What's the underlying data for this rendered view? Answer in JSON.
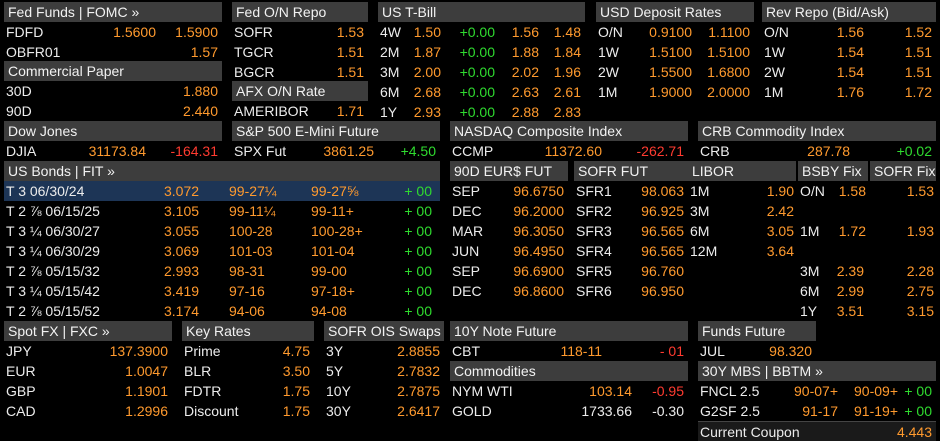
{
  "fed_funds": {
    "title": "Fed Funds | FOMC »",
    "rows": [
      {
        "label": "FDFD",
        "v1": "1.5600",
        "v2": "1.5900"
      },
      {
        "label": "OBFR01",
        "v1": "",
        "v2": "1.57"
      }
    ]
  },
  "commercial_paper": {
    "title": "Commercial Paper",
    "rows": [
      {
        "label": "30D",
        "value": "1.880"
      },
      {
        "label": "90D",
        "value": "2.440"
      }
    ]
  },
  "fed_on_repo": {
    "title": "Fed O/N Repo",
    "rows": [
      {
        "label": "SOFR",
        "value": "1.53"
      },
      {
        "label": "TGCR",
        "value": "1.51"
      },
      {
        "label": "BGCR",
        "value": "1.51"
      }
    ]
  },
  "afx": {
    "title": "AFX O/N Rate",
    "rows": [
      {
        "label": "AMERIBOR",
        "value": "1.71"
      }
    ]
  },
  "tbill": {
    "title": "US T-Bill",
    "rows": [
      {
        "tenor": "4W",
        "yld": "1.50",
        "chg": "+0.00",
        "bid": "1.56",
        "ask": "1.48"
      },
      {
        "tenor": "2M",
        "yld": "1.87",
        "chg": "+0.00",
        "bid": "1.88",
        "ask": "1.84"
      },
      {
        "tenor": "3M",
        "yld": "2.00",
        "chg": "+0.00",
        "bid": "2.02",
        "ask": "1.96"
      },
      {
        "tenor": "6M",
        "yld": "2.68",
        "chg": "+0.00",
        "bid": "2.63",
        "ask": "2.61"
      },
      {
        "tenor": "1Y",
        "yld": "2.93",
        "chg": "+0.00",
        "bid": "2.88",
        "ask": "2.83"
      }
    ]
  },
  "usd_deposit": {
    "title": "USD Deposit Rates",
    "rows": [
      {
        "tenor": "O/N",
        "v1": "0.9100",
        "v2": "1.1100"
      },
      {
        "tenor": "1W",
        "v1": "1.5100",
        "v2": "1.5100"
      },
      {
        "tenor": "2W",
        "v1": "1.5500",
        "v2": "1.6800"
      },
      {
        "tenor": "1M",
        "v1": "1.9000",
        "v2": "2.0000"
      }
    ]
  },
  "rev_repo": {
    "title": "Rev Repo (Bid/Ask)",
    "rows": [
      {
        "tenor": "O/N",
        "v1": "1.56",
        "v2": "1.52"
      },
      {
        "tenor": "1W",
        "v1": "1.54",
        "v2": "1.51"
      },
      {
        "tenor": "2W",
        "v1": "1.54",
        "v2": "1.51"
      },
      {
        "tenor": "1M",
        "v1": "1.76",
        "v2": "1.72"
      }
    ]
  },
  "dow": {
    "title": "Dow Jones",
    "label": "DJIA",
    "value": "31173.84",
    "change": "-164.31"
  },
  "spx": {
    "title": "S&P 500 E-Mini Future",
    "label": "SPX Fut",
    "value": "3861.25",
    "change": "+4.50"
  },
  "nasdaq": {
    "title": "NASDAQ Composite Index",
    "label": "CCMP",
    "value": "11372.60",
    "change": "-262.71"
  },
  "crb": {
    "title": "CRB Commodity Index",
    "label": "CRB",
    "value": "287.78",
    "change": "+0.02"
  },
  "us_bonds": {
    "title": "US Bonds | FIT »",
    "rows": [
      {
        "name": "T 3 06/30/24",
        "yld": "3.072",
        "bid": "99-27¼",
        "ask": "99-27⅝",
        "chg": "+ 00"
      },
      {
        "name": "T 2 ⅞ 06/15/25",
        "yld": "3.105",
        "bid": "99-11¼",
        "ask": "99-11+",
        "chg": "+ 00"
      },
      {
        "name": "T 3 ¼ 06/30/27",
        "yld": "3.055",
        "bid": "100-28",
        "ask": "100-28+",
        "chg": "+ 00"
      },
      {
        "name": "T 3 ¼ 06/30/29",
        "yld": "3.069",
        "bid": "101-03",
        "ask": "101-04",
        "chg": "+ 00"
      },
      {
        "name": "T 2 ⅞ 05/15/32",
        "yld": "2.993",
        "bid": "98-31",
        "ask": "99-00",
        "chg": "+ 00"
      },
      {
        "name": "T 3 ¼ 05/15/42",
        "yld": "3.419",
        "bid": "97-16",
        "ask": "97-18+",
        "chg": "+ 00"
      },
      {
        "name": "T 2 ⅞ 05/15/52",
        "yld": "3.174",
        "bid": "94-06",
        "ask": "94-08",
        "chg": "+ 00"
      }
    ]
  },
  "eur_fut": {
    "title": "90D EUR$ FUT",
    "rows": [
      {
        "label": "SEP",
        "value": "96.6750"
      },
      {
        "label": "DEC",
        "value": "96.2000"
      },
      {
        "label": "MAR",
        "value": "96.3050"
      },
      {
        "label": "JUN",
        "value": "96.4950"
      },
      {
        "label": "SEP",
        "value": "96.6900"
      },
      {
        "label": "DEC",
        "value": "96.8600"
      }
    ]
  },
  "sofr_fut": {
    "title": "SOFR FUT",
    "rows": [
      {
        "label": "SFR1",
        "value": "98.063"
      },
      {
        "label": "SFR2",
        "value": "96.925"
      },
      {
        "label": "SFR3",
        "value": "96.565"
      },
      {
        "label": "SFR4",
        "value": "96.565"
      },
      {
        "label": "SFR5",
        "value": "96.760"
      },
      {
        "label": "SFR6",
        "value": "96.950"
      }
    ]
  },
  "libor": {
    "title": "LIBOR",
    "rows": [
      {
        "label": "1M",
        "value": "1.90"
      },
      {
        "label": "3M",
        "value": "2.42"
      },
      {
        "label": "6M",
        "value": "3.05"
      },
      {
        "label": "12M",
        "value": "3.64"
      }
    ]
  },
  "bsby": {
    "title": "BSBY Fix",
    "rows": [
      {
        "label": "O/N",
        "value": "1.58"
      },
      {
        "label": "1M",
        "value": "1.72"
      }
    ]
  },
  "sofr_fix": {
    "title": "SOFR Fix",
    "rows": [
      {
        "value": "1.53"
      },
      {
        "value": "1.93"
      }
    ]
  },
  "bsby_terms": {
    "rows": [
      {
        "label": "3M",
        "v1": "2.39",
        "v2": "2.28"
      },
      {
        "label": "6M",
        "v1": "2.99",
        "v2": "2.75"
      },
      {
        "label": "1Y",
        "v1": "3.51",
        "v2": "3.15"
      }
    ]
  },
  "spot_fx": {
    "title": "Spot FX | FXC »",
    "rows": [
      {
        "label": "JPY",
        "value": "137.3900"
      },
      {
        "label": "EUR",
        "value": "1.0047"
      },
      {
        "label": "GBP",
        "value": "1.1901"
      },
      {
        "label": "CAD",
        "value": "1.2996"
      }
    ]
  },
  "key_rates": {
    "title": "Key Rates",
    "rows": [
      {
        "label": "Prime",
        "value": "4.75"
      },
      {
        "label": "BLR",
        "value": "3.50"
      },
      {
        "label": "FDTR",
        "value": "1.75"
      },
      {
        "label": "Discount",
        "value": "1.75"
      }
    ]
  },
  "sofr_ois": {
    "title": "SOFR OIS Swaps",
    "rows": [
      {
        "label": "3Y",
        "value": "2.8855"
      },
      {
        "label": "5Y",
        "value": "2.7832"
      },
      {
        "label": "10Y",
        "value": "2.7875"
      },
      {
        "label": "30Y",
        "value": "2.6417"
      }
    ]
  },
  "note_future": {
    "title": "10Y Note Future",
    "label": "CBT",
    "value": "118-11",
    "change": "- 01"
  },
  "commodities": {
    "title": "Commodities",
    "rows": [
      {
        "label": "NYM WTI",
        "value": "103.14",
        "change": "-0.95"
      },
      {
        "label": "GOLD",
        "value": "1733.66",
        "change": "-0.30"
      }
    ]
  },
  "funds_future": {
    "title": "Funds Future",
    "label": "JUL",
    "value": "98.320"
  },
  "mbs": {
    "title": "30Y MBS | BBTM »",
    "rows": [
      {
        "label": "FNCL 2.5",
        "bid": "90-07+",
        "ask": "90-09+",
        "chg": "+ 00"
      },
      {
        "label": "G2SF 2.5",
        "bid": "91-17",
        "ask": "91-19+",
        "chg": "+ 00"
      }
    ],
    "coupon_label": "Current Coupon",
    "coupon_value": "4.443"
  }
}
